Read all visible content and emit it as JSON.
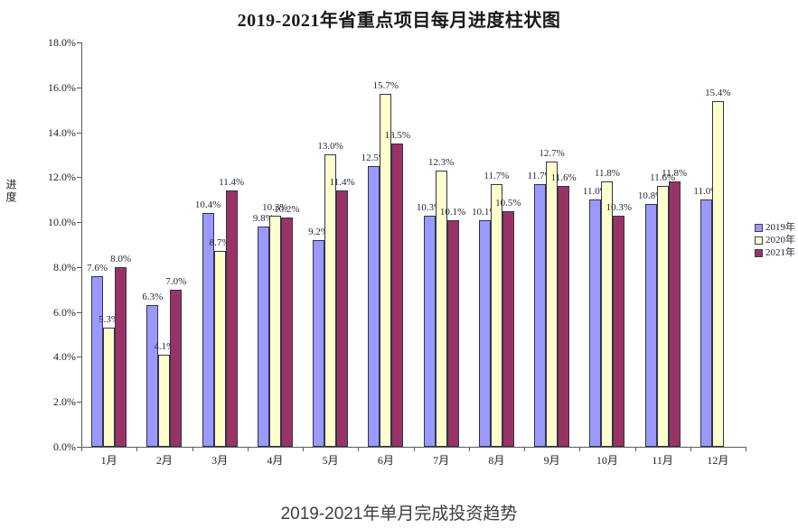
{
  "header": {
    "title": "2019-2021年省重点项目每月进度柱状图"
  },
  "footer": {
    "caption": "2019-2021年单月完成投资趋势"
  },
  "chart_data": {
    "type": "bar",
    "title": "2019-2021年省重点项目每月进度柱状图",
    "xlabel": "",
    "ylabel": "进度",
    "categories": [
      "1月",
      "2月",
      "3月",
      "4月",
      "5月",
      "6月",
      "7月",
      "8月",
      "9月",
      "10月",
      "11月",
      "12月"
    ],
    "series": [
      {
        "name": "2019年",
        "color": "#9999FF",
        "values": [
          7.6,
          6.3,
          10.4,
          9.8,
          9.2,
          12.5,
          10.3,
          10.1,
          11.7,
          11.0,
          10.8,
          11.0
        ]
      },
      {
        "name": "2020年",
        "color": "#FFFFCC",
        "values": [
          5.3,
          4.1,
          8.7,
          10.3,
          13.0,
          15.7,
          12.3,
          11.7,
          12.7,
          11.8,
          11.6,
          15.4
        ]
      },
      {
        "name": "2021年",
        "color": "#993366",
        "values": [
          8.0,
          7.0,
          11.4,
          10.2,
          11.4,
          13.5,
          10.1,
          10.5,
          11.6,
          10.3,
          11.8,
          null
        ]
      }
    ],
    "ylim": [
      0,
      18
    ],
    "ytick_step": 2,
    "ytick_suffix": "%",
    "value_label_suffix": "%",
    "grid": false,
    "legend_position": "right",
    "axis_color": "#595959",
    "bar_border_color": "#33334a",
    "label_color": "#26263a"
  }
}
